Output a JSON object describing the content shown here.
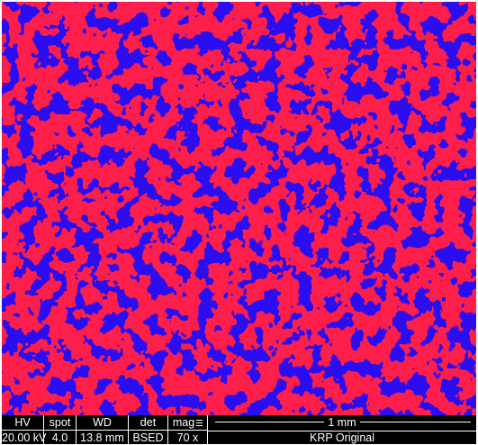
{
  "image": {
    "description_colors": {
      "phase_a": "#ff1f4a",
      "phase_b": "#2a0af0"
    }
  },
  "databar": {
    "columns": [
      {
        "label": "HV",
        "value": "20.00 kV"
      },
      {
        "label": "spot",
        "value": "4.0"
      },
      {
        "label": "WD",
        "value": "13.8 mm"
      },
      {
        "label": "det",
        "value": "BSED"
      },
      {
        "label": "mag",
        "value": "70 x",
        "icon": "mag-lines-icon"
      }
    ],
    "scale_label": "1 mm",
    "source": "KRP Original"
  }
}
